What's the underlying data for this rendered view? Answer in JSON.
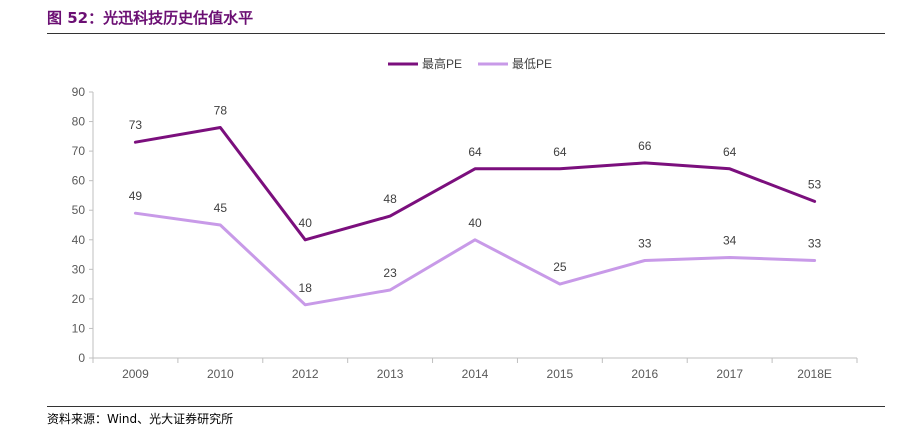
{
  "figure": {
    "title": "图 52：光迅科技历史估值水平",
    "source": "资料来源：Wind、光大证券研究所"
  },
  "colors": {
    "series_high": "#7b0f7d",
    "series_low": "#c89ae8",
    "axis": "#bfbfbf",
    "title": "#6b0f73"
  },
  "chart_data": {
    "type": "line",
    "categories": [
      "2009",
      "2010",
      "2012",
      "2013",
      "2014",
      "2015",
      "2016",
      "2017",
      "2018E"
    ],
    "series": [
      {
        "name": "最高PE",
        "values": [
          73,
          78,
          40,
          48,
          64,
          64,
          66,
          64,
          53
        ],
        "labels": [
          "73",
          "78",
          "40",
          "48",
          "64",
          "64",
          "66",
          "64",
          "53"
        ]
      },
      {
        "name": "最低PE",
        "values": [
          49,
          45,
          18,
          23,
          40,
          25,
          33,
          34,
          33
        ],
        "labels": [
          "49",
          "45",
          "18",
          "23",
          "40",
          "25",
          "33",
          "34",
          "33"
        ]
      }
    ],
    "ylim": [
      0,
      90
    ],
    "yticks": [
      "0",
      "10",
      "20",
      "30",
      "40",
      "50",
      "60",
      "70",
      "80",
      "90"
    ],
    "grid": false,
    "legend": "top-center"
  }
}
